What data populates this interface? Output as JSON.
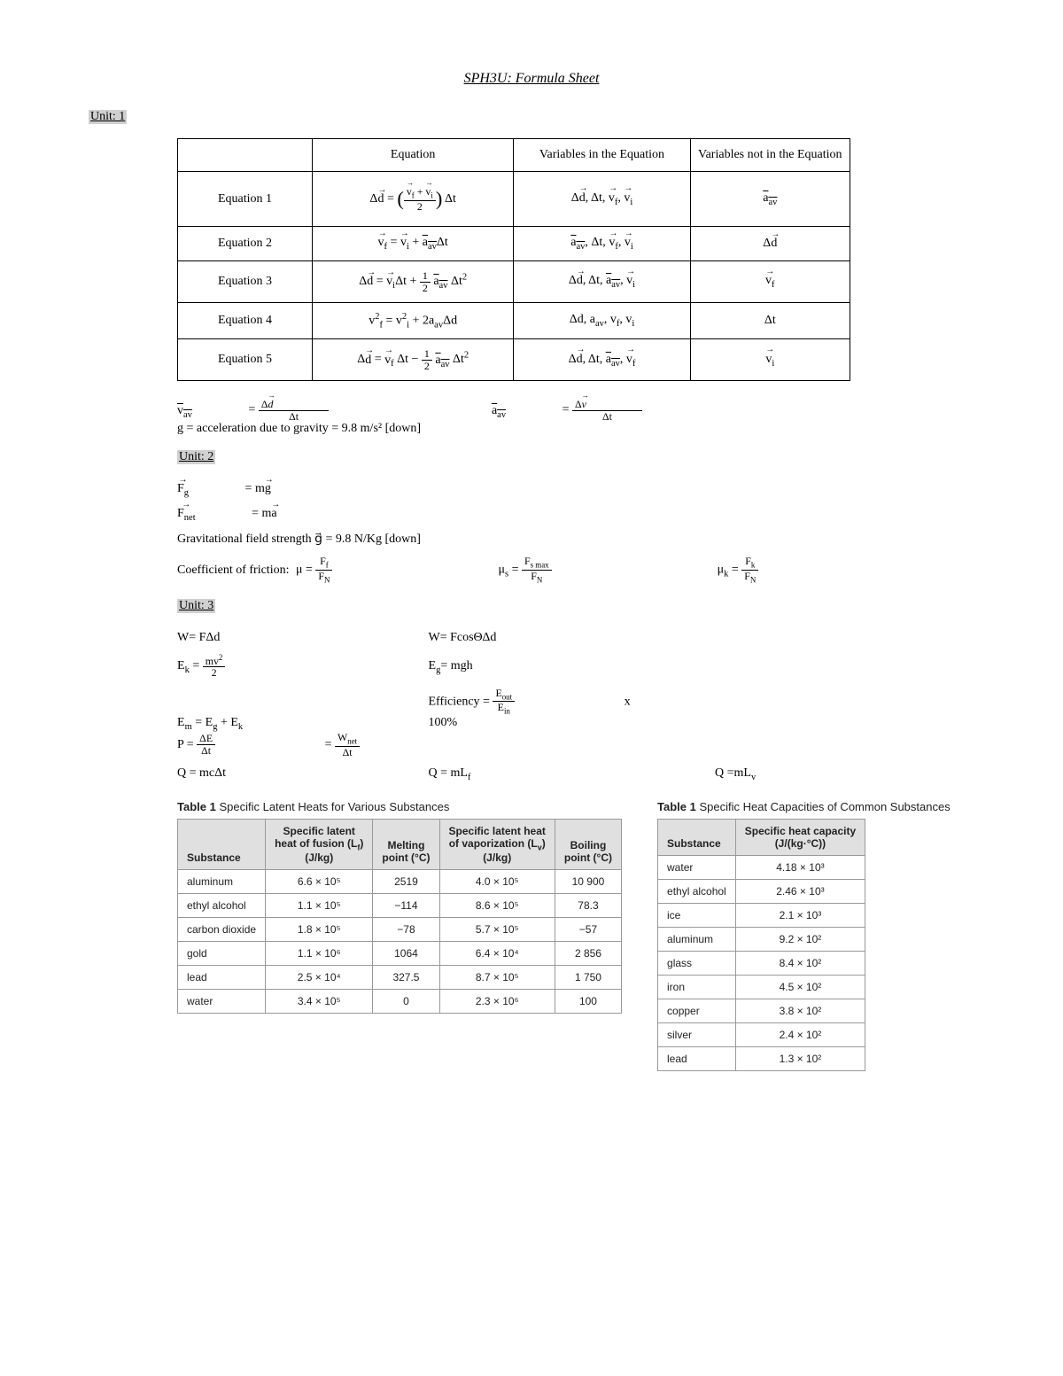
{
  "title": "SPH3U: Formula Sheet",
  "unit1_label": "Unit: 1",
  "unit2_label": "Unit: 2",
  "unit3_label": "Unit: 3",
  "eq_table": {
    "headers": [
      "",
      "Equation",
      "Variables in the Equation",
      "Variables not in the Equation"
    ],
    "rows": [
      {
        "name": "Equation 1",
        "eq": "Δd⃗ = ((v⃗_f + v⃗_i)/2) Δt",
        "vars_in": "Δd⃗, Δt, v⃗_f, v⃗_i",
        "vars_out": "a⃗_av"
      },
      {
        "name": "Equation 2",
        "eq": "v⃗_f = v⃗_i + a⃗_av Δt",
        "vars_in": "a⃗_av, Δt, v⃗_f, v⃗_i",
        "vars_out": "Δd⃗"
      },
      {
        "name": "Equation 3",
        "eq": "Δd⃗ = v⃗_i Δt + ½ a⃗_av Δt²",
        "vars_in": "Δd⃗, Δt, a⃗_av, v⃗_i",
        "vars_out": "v⃗_f"
      },
      {
        "name": "Equation 4",
        "eq": "v²_f = v²_i + 2a_av Δd",
        "vars_in": "Δd, a_av, v_f, v_i",
        "vars_out": "Δt"
      },
      {
        "name": "Equation 5",
        "eq": "Δd⃗ = v⃗_f Δt − ½ a⃗_av Δt²",
        "vars_in": "Δd⃗, Δt, a⃗_av, v⃗_f",
        "vars_out": "v⃗_i"
      }
    ]
  },
  "unit1_extra": {
    "vav": "v⃗_av = Δd⃗/Δt",
    "aav": "a⃗_av = Δv⃗/Δt",
    "g": "g = acceleration due to gravity = 9.8 m/s² [down]"
  },
  "unit2": {
    "fg": "F⃗_g = mg⃗",
    "fnet": "F⃗_net = ma⃗",
    "gfield": "Gravitational field strength g⃗ = 9.8 N/Kg  [down]",
    "mu_label": "Coefficient of friction:",
    "mu": "μ = F_f / F_N",
    "mu_s": "μ_s = F_s max / F_N",
    "mu_k": "μ_k = F_k / F_N"
  },
  "unit3": {
    "r1c1": "W= FΔd",
    "r1c2": "W= FcosΘΔd",
    "r2c1": "E_k = mv²/2",
    "r2c2": "E_g= mgh",
    "r3c1": "E_m = E_g + E_k",
    "r3c2": "Efficiency = (E_out/E_in) x 100%",
    "r3c3": "P = ΔE/Δt = W_net/Δt",
    "r4c1": "Q = mcΔt",
    "r4c2": "Q = mL_f",
    "r4c3": "Q =mL_v"
  },
  "table1": {
    "caption_bold": "Table 1",
    "caption_rest": "  Specific Latent Heats for Various Substances",
    "headers": [
      "Substance",
      "Specific latent heat of fusion (Lf) (J/kg)",
      "Melting point (°C)",
      "Specific latent heat of vaporization (Lv) (J/kg)",
      "Boiling point (°C)"
    ],
    "rows": [
      [
        "aluminum",
        "6.6 × 10⁵",
        "2519",
        "4.0 × 10⁵",
        "10 900"
      ],
      [
        "ethyl alcohol",
        "1.1 × 10⁵",
        "−114",
        "8.6 × 10⁵",
        "78.3"
      ],
      [
        "carbon dioxide",
        "1.8 × 10⁵",
        "−78",
        "5.7 × 10⁵",
        "−57"
      ],
      [
        "gold",
        "1.1 × 10⁶",
        "1064",
        "6.4 × 10⁴",
        "2 856"
      ],
      [
        "lead",
        "2.5 × 10⁴",
        "327.5",
        "8.7 × 10⁵",
        "1 750"
      ],
      [
        "water",
        "3.4 × 10⁵",
        "0",
        "2.3 × 10⁶",
        "100"
      ]
    ]
  },
  "table2": {
    "caption_bold": "Table 1",
    "caption_rest": "  Specific Heat Capacities of Common Substances",
    "headers": [
      "Substance",
      "Specific heat capacity (J/(kg·°C))"
    ],
    "rows": [
      [
        "water",
        "4.18 × 10³"
      ],
      [
        "ethyl alcohol",
        "2.46 × 10³"
      ],
      [
        "ice",
        "2.1 × 10³"
      ],
      [
        "aluminum",
        "9.2 × 10²"
      ],
      [
        "glass",
        "8.4 × 10²"
      ],
      [
        "iron",
        "4.5 × 10²"
      ],
      [
        "copper",
        "3.8 × 10²"
      ],
      [
        "silver",
        "2.4 × 10²"
      ],
      [
        "lead",
        "1.3 × 10²"
      ]
    ]
  },
  "colors": {
    "highlight": "#d0d0d0",
    "table_header_bg": "#e0e0e0",
    "border": "#999999"
  }
}
